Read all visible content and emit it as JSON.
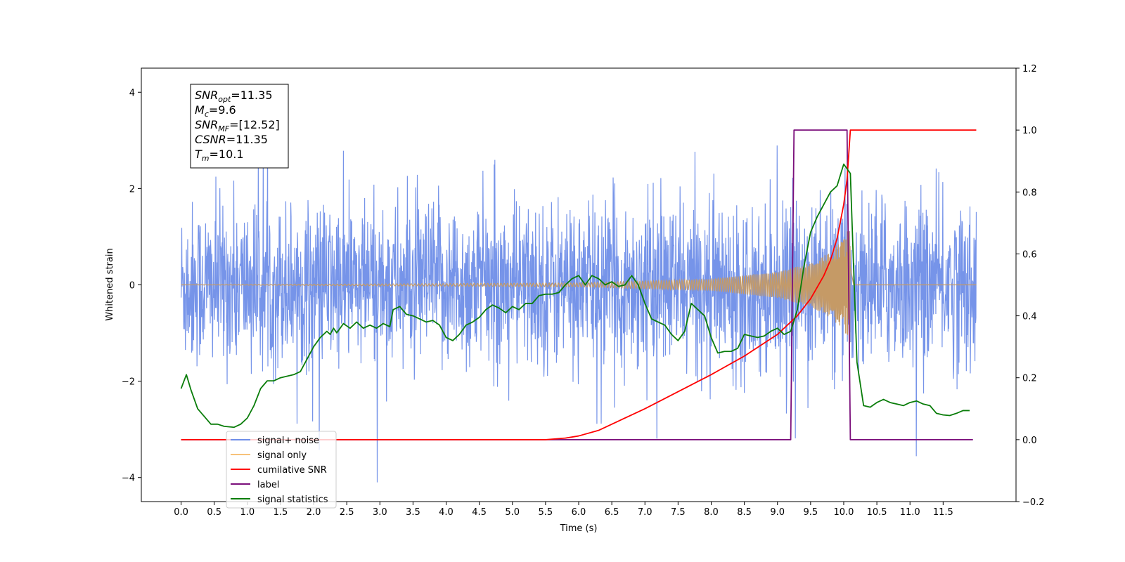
{
  "chart_data": {
    "type": "line",
    "xlabel": "Time (s)",
    "ylabel": "Whitened strain",
    "xlim": [
      -0.6,
      12.6
    ],
    "ylim": [
      -4.5,
      4.5
    ],
    "y2lim": [
      -0.2,
      1.2
    ],
    "x_ticks": [
      "0.0",
      "0.5",
      "1.0",
      "1.5",
      "2.0",
      "2.5",
      "3.0",
      "3.5",
      "4.0",
      "4.5",
      "5.0",
      "5.5",
      "6.0",
      "6.5",
      "7.0",
      "7.5",
      "8.0",
      "8.5",
      "9.0",
      "9.5",
      "10.0",
      "10.5",
      "11.0",
      "11.5"
    ],
    "y_ticks": [
      "4",
      "2",
      "0",
      "−2",
      "−4"
    ],
    "y2_ticks": [
      "1.2",
      "1.0",
      "0.8",
      "0.6",
      "0.4",
      "0.2",
      "0.0",
      "−0.2"
    ],
    "annotation": [
      {
        "base": "SNR",
        "sub": "opt",
        "rest": "=11.35"
      },
      {
        "base": "M",
        "sub": "c",
        "rest": "=9.6"
      },
      {
        "base": "SNR",
        "sub": "MF",
        "rest": "=[12.52]"
      },
      {
        "base": "CSNR",
        "sub": "",
        "rest": "=11.35"
      },
      {
        "base": "T",
        "sub": "m",
        "rest": "=10.1"
      }
    ],
    "legend": {
      "placement": "lower-left",
      "entries": [
        {
          "label": "signal+ noise",
          "color": "#6f8ee8"
        },
        {
          "label": "signal only",
          "color": "#f7c27a"
        },
        {
          "label": "cumilative SNR",
          "color": "#ff0000"
        },
        {
          "label": "label",
          "color": "#7b0f7b"
        },
        {
          "label": "signal statistics",
          "color": "#0a7d0a"
        }
      ]
    },
    "noise": {
      "name": "signal+ noise",
      "color": "#6f8ee8",
      "x_range": [
        0.0,
        12.0
      ],
      "sigma": 0.85,
      "peak": 4.1
    },
    "signal": {
      "name": "signal only",
      "color": "#c59a66",
      "x_range": [
        0.0,
        10.1
      ],
      "envelope": [
        [
          0.0,
          0.0
        ],
        [
          6.0,
          0.04
        ],
        [
          8.0,
          0.12
        ],
        [
          9.0,
          0.27
        ],
        [
          9.5,
          0.45
        ],
        [
          9.8,
          0.68
        ],
        [
          10.0,
          0.95
        ],
        [
          10.1,
          1.25
        ]
      ]
    },
    "label_series": {
      "name": "label",
      "color": "#7b0f7b",
      "axis": "right",
      "points": [
        [
          0.0,
          0.0
        ],
        [
          9.2,
          0.0
        ],
        [
          9.25,
          1.0
        ],
        [
          10.05,
          1.0
        ],
        [
          10.1,
          0.0
        ],
        [
          11.95,
          0.0
        ]
      ]
    },
    "snr_series": {
      "name": "cumilative SNR",
      "color": "#ff0000",
      "axis": "right",
      "points": [
        [
          0.0,
          0.0
        ],
        [
          5.5,
          0.0
        ],
        [
          5.8,
          0.005
        ],
        [
          6.0,
          0.012
        ],
        [
          6.3,
          0.03
        ],
        [
          6.6,
          0.06
        ],
        [
          7.0,
          0.1
        ],
        [
          7.5,
          0.155
        ],
        [
          8.0,
          0.21
        ],
        [
          8.5,
          0.27
        ],
        [
          9.0,
          0.34
        ],
        [
          9.3,
          0.4
        ],
        [
          9.5,
          0.455
        ],
        [
          9.7,
          0.53
        ],
        [
          9.8,
          0.58
        ],
        [
          9.9,
          0.65
        ],
        [
          10.0,
          0.76
        ],
        [
          10.05,
          0.84
        ],
        [
          10.1,
          1.0
        ],
        [
          12.0,
          1.0
        ]
      ]
    },
    "stats_series": {
      "name": "signal statistics",
      "color": "#0a7d0a",
      "axis": "right",
      "points": [
        [
          0.0,
          0.165
        ],
        [
          0.08,
          0.21
        ],
        [
          0.15,
          0.16
        ],
        [
          0.25,
          0.1
        ],
        [
          0.35,
          0.075
        ],
        [
          0.45,
          0.05
        ],
        [
          0.55,
          0.05
        ],
        [
          0.65,
          0.043
        ],
        [
          0.8,
          0.04
        ],
        [
          0.9,
          0.05
        ],
        [
          1.0,
          0.07
        ],
        [
          1.1,
          0.11
        ],
        [
          1.2,
          0.165
        ],
        [
          1.3,
          0.19
        ],
        [
          1.4,
          0.19
        ],
        [
          1.5,
          0.2
        ],
        [
          1.6,
          0.205
        ],
        [
          1.7,
          0.21
        ],
        [
          1.8,
          0.22
        ],
        [
          1.9,
          0.26
        ],
        [
          2.0,
          0.3
        ],
        [
          2.1,
          0.33
        ],
        [
          2.2,
          0.35
        ],
        [
          2.25,
          0.34
        ],
        [
          2.3,
          0.36
        ],
        [
          2.35,
          0.345
        ],
        [
          2.45,
          0.375
        ],
        [
          2.55,
          0.36
        ],
        [
          2.65,
          0.38
        ],
        [
          2.75,
          0.36
        ],
        [
          2.85,
          0.37
        ],
        [
          2.95,
          0.36
        ],
        [
          3.05,
          0.375
        ],
        [
          3.15,
          0.365
        ],
        [
          3.2,
          0.42
        ],
        [
          3.3,
          0.43
        ],
        [
          3.4,
          0.405
        ],
        [
          3.5,
          0.4
        ],
        [
          3.6,
          0.39
        ],
        [
          3.7,
          0.38
        ],
        [
          3.8,
          0.385
        ],
        [
          3.9,
          0.37
        ],
        [
          4.0,
          0.33
        ],
        [
          4.1,
          0.32
        ],
        [
          4.2,
          0.34
        ],
        [
          4.3,
          0.37
        ],
        [
          4.4,
          0.38
        ],
        [
          4.5,
          0.395
        ],
        [
          4.6,
          0.42
        ],
        [
          4.7,
          0.435
        ],
        [
          4.8,
          0.425
        ],
        [
          4.9,
          0.41
        ],
        [
          5.0,
          0.43
        ],
        [
          5.1,
          0.42
        ],
        [
          5.2,
          0.44
        ],
        [
          5.3,
          0.44
        ],
        [
          5.4,
          0.465
        ],
        [
          5.5,
          0.47
        ],
        [
          5.6,
          0.47
        ],
        [
          5.7,
          0.475
        ],
        [
          5.8,
          0.5
        ],
        [
          5.9,
          0.52
        ],
        [
          6.0,
          0.53
        ],
        [
          6.1,
          0.5
        ],
        [
          6.2,
          0.53
        ],
        [
          6.3,
          0.52
        ],
        [
          6.4,
          0.5
        ],
        [
          6.5,
          0.51
        ],
        [
          6.6,
          0.495
        ],
        [
          6.7,
          0.5
        ],
        [
          6.8,
          0.53
        ],
        [
          6.9,
          0.5
        ],
        [
          7.0,
          0.44
        ],
        [
          7.1,
          0.39
        ],
        [
          7.2,
          0.38
        ],
        [
          7.3,
          0.37
        ],
        [
          7.4,
          0.34
        ],
        [
          7.5,
          0.32
        ],
        [
          7.6,
          0.35
        ],
        [
          7.7,
          0.44
        ],
        [
          7.8,
          0.42
        ],
        [
          7.9,
          0.4
        ],
        [
          8.0,
          0.33
        ],
        [
          8.1,
          0.28
        ],
        [
          8.2,
          0.285
        ],
        [
          8.3,
          0.285
        ],
        [
          8.4,
          0.295
        ],
        [
          8.5,
          0.34
        ],
        [
          8.6,
          0.335
        ],
        [
          8.7,
          0.33
        ],
        [
          8.8,
          0.335
        ],
        [
          8.9,
          0.35
        ],
        [
          9.0,
          0.36
        ],
        [
          9.1,
          0.34
        ],
        [
          9.2,
          0.35
        ],
        [
          9.3,
          0.42
        ],
        [
          9.4,
          0.56
        ],
        [
          9.5,
          0.67
        ],
        [
          9.6,
          0.72
        ],
        [
          9.7,
          0.76
        ],
        [
          9.8,
          0.8
        ],
        [
          9.9,
          0.82
        ],
        [
          10.0,
          0.89
        ],
        [
          10.1,
          0.86
        ],
        [
          10.15,
          0.55
        ],
        [
          10.2,
          0.25
        ],
        [
          10.3,
          0.11
        ],
        [
          10.4,
          0.105
        ],
        [
          10.5,
          0.12
        ],
        [
          10.6,
          0.13
        ],
        [
          10.7,
          0.12
        ],
        [
          10.8,
          0.115
        ],
        [
          10.9,
          0.11
        ],
        [
          11.0,
          0.12
        ],
        [
          11.1,
          0.125
        ],
        [
          11.2,
          0.115
        ],
        [
          11.3,
          0.11
        ],
        [
          11.4,
          0.085
        ],
        [
          11.5,
          0.08
        ],
        [
          11.6,
          0.078
        ],
        [
          11.7,
          0.085
        ],
        [
          11.8,
          0.094
        ],
        [
          11.9,
          0.094
        ]
      ]
    }
  }
}
